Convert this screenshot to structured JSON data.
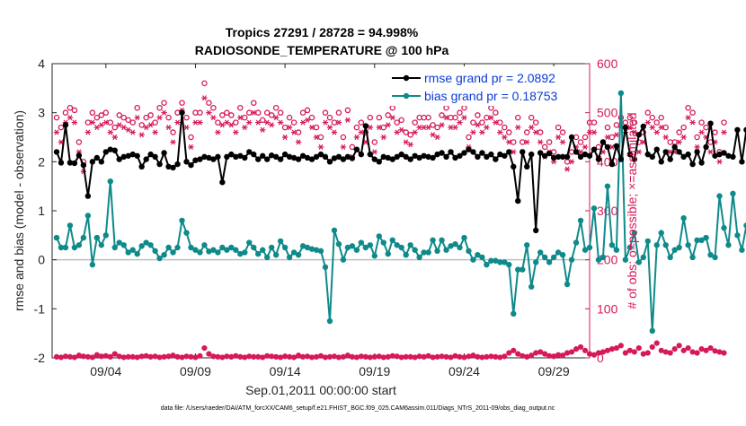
{
  "chart_data": {
    "type": "line",
    "title": "Tropics 27291 / 28728 = 94.998%",
    "subtitle": "RADIOSONDE_TEMPERATURE @ 100 hPa",
    "xlabel": "Sep.01,2011 00:00:00 start",
    "ylabel_left": "rmse and bias (model - observation)",
    "ylabel_right": "# of obs: o=possible; ×=assimilated",
    "footnote": "data file: /Users/raeder/DAI/ATM_forcXX/CAM6_setup/f.e21.FHIST_BGC.f09_025.CAM6assim.011/Diags_NTrS_2011-09/obs_diag_output.nc",
    "x_ticks": [
      3.5,
      8.5,
      13.5,
      18.5,
      23.5,
      28.5
    ],
    "x_tick_labels": [
      "09/04",
      "09/09",
      "09/14",
      "09/19",
      "09/24",
      "09/29"
    ],
    "xlim": [
      0.5,
      30.5
    ],
    "ylim_left": [
      -2,
      4
    ],
    "y_ticks_left": [
      -2,
      -1,
      0,
      1,
      2,
      3,
      4
    ],
    "y_tick_labels_left": [
      "-2",
      "-1",
      "0",
      "1",
      "2",
      "3",
      "4"
    ],
    "ylim_right": [
      0,
      600
    ],
    "y_ticks_right": [
      0,
      100,
      200,
      300,
      400,
      500,
      600
    ],
    "y_tick_labels_right": [
      "0",
      "100",
      "200",
      "300",
      "400",
      "500",
      "600"
    ],
    "legend": {
      "position": "top-right",
      "entries": [
        "rmse grand pr = 2.0892",
        "bias grand pr = 0.18753"
      ]
    },
    "colors": {
      "rmse": "#000000",
      "bias": "#0e8a8a",
      "possible": "#d6195a",
      "assimilated": "#d6195a",
      "zero_line": "#bfbfbf"
    },
    "time_step": 0.25,
    "series": [
      {
        "name": "rmse",
        "values": [
          2.2,
          1.98,
          2.75,
          1.98,
          1.97,
          2.13,
          1.93,
          1.3,
          2.0,
          2.08,
          2.0,
          2.2,
          2.25,
          2.23,
          2.05,
          2.1,
          2.12,
          2.15,
          2.12,
          1.9,
          2.05,
          2.15,
          2.1,
          1.95,
          2.18,
          1.9,
          1.88,
          1.95,
          3.0,
          2.0,
          1.93,
          2.03,
          2.05,
          2.1,
          2.08,
          2.05,
          2.1,
          1.58,
          2.1,
          2.15,
          2.1,
          2.12,
          2.08,
          2.2,
          2.15,
          2.05,
          2.12,
          2.05,
          2.13,
          2.1,
          2.05,
          2.15,
          2.1,
          2.08,
          2.05,
          2.12,
          2.08,
          2.05,
          2.1,
          2.15,
          2.1,
          2.0,
          2.07,
          2.1,
          2.05,
          2.1,
          2.07,
          2.25,
          2.15,
          2.73,
          2.15,
          2.05,
          2.0,
          2.1,
          2.08,
          2.05,
          2.1,
          2.15,
          2.1,
          2.05,
          2.12,
          2.08,
          2.12,
          2.1,
          2.08,
          2.15,
          2.18,
          2.1,
          2.2,
          2.08,
          2.12,
          2.18,
          2.25,
          2.2,
          2.1,
          2.18,
          2.1,
          2.15,
          2.05,
          2.15,
          2.12,
          2.2,
          1.9,
          1.2,
          2.2,
          1.9,
          2.15,
          0.6,
          2.18,
          2.12,
          2.17,
          2.08,
          2.1,
          2.1,
          2.1,
          2.5,
          2.2,
          2.1,
          2.15,
          2.12,
          2.25,
          2.05,
          2.4,
          2.3,
          1.95,
          2.32,
          2.05,
          2.7,
          2.15,
          2.05,
          2.55,
          2.72,
          2.15,
          2.1,
          2.25,
          2.0,
          2.2,
          2.05,
          2.3,
          2.2,
          2.1,
          2.15,
          1.95,
          2.2,
          1.98,
          2.3,
          2.78,
          2.12,
          2.15,
          2.18,
          2.12,
          2.1,
          2.65,
          2.0,
          2.65,
          2.65
        ]
      },
      {
        "name": "bias",
        "values": [
          0.45,
          0.25,
          0.25,
          0.7,
          0.25,
          0.3,
          0.45,
          0.9,
          -0.1,
          0.45,
          0.3,
          0.5,
          1.6,
          0.25,
          0.35,
          0.3,
          0.15,
          0.2,
          0.12,
          0.28,
          0.35,
          0.3,
          0.18,
          0.03,
          0.1,
          0.25,
          0.15,
          0.25,
          0.8,
          0.55,
          0.25,
          0.2,
          0.15,
          0.3,
          0.17,
          0.2,
          0.15,
          0.25,
          0.2,
          0.25,
          0.2,
          0.12,
          0.15,
          0.35,
          0.25,
          0.12,
          0.2,
          0.05,
          0.25,
          0.1,
          0.38,
          0.25,
          0.05,
          0.15,
          0.1,
          0.28,
          0.25,
          0.22,
          0.2,
          0.18,
          -0.15,
          -1.25,
          0.6,
          0.32,
          0.0,
          0.25,
          0.28,
          0.2,
          0.35,
          0.25,
          0.3,
          0.08,
          0.48,
          0.35,
          0.12,
          0.4,
          0.3,
          0.25,
          0.1,
          0.3,
          0.2,
          0.05,
          0.15,
          0.15,
          0.4,
          0.18,
          0.4,
          0.2,
          0.28,
          0.32,
          0.25,
          0.45,
          0.18,
          0.0,
          0.1,
          0.05,
          -0.1,
          -0.02,
          -0.02,
          -0.05,
          -0.05,
          -0.1,
          -1.1,
          -0.2,
          -0.2,
          0.3,
          -0.55,
          -0.05,
          0.15,
          0.05,
          -0.05,
          0.05,
          0.15,
          0.1,
          -0.5,
          0.0,
          0.35,
          0.8,
          0.2,
          0.25,
          1.05,
          0.0,
          0.05,
          1.5,
          0.3,
          0.2,
          3.4,
          0.0,
          0.25,
          0.55,
          -0.05,
          0.05,
          0.38,
          -1.45,
          0.3,
          0.55,
          0.3,
          0.05,
          0.2,
          0.25,
          0.85,
          0.3,
          0.05,
          0.4,
          0.4,
          0.45,
          0.1,
          0.05,
          1.3,
          0.65,
          0.3,
          1.35,
          0.5,
          0.2,
          0.7,
          0.55
        ]
      },
      {
        "name": "possible",
        "values": [
          490,
          470,
          500,
          510,
          505,
          440,
          400,
          480,
          500,
          490,
          495,
          500,
          480,
          470,
          495,
          490,
          485,
          480,
          510,
          475,
          490,
          495,
          480,
          510,
          520,
          490,
          460,
          500,
          520,
          490,
          450,
          500,
          500,
          560,
          520,
          510,
          480,
          495,
          500,
          495,
          480,
          510,
          490,
          500,
          520,
          500,
          485,
          500,
          495,
          510,
          500,
          470,
          490,
          480,
          460,
          500,
          505,
          490,
          470,
          450,
          500,
          490,
          480,
          500,
          450,
          505,
          430,
          470,
          480,
          460,
          490,
          440,
          490,
          470,
          495,
          510,
          480,
          485,
          460,
          455,
          480,
          490,
          490,
          490,
          475,
          470,
          495,
          510,
          490,
          490,
          500,
          510,
          450,
          480,
          495,
          480,
          490,
          510,
          500,
          480,
          470,
          460,
          440,
          490,
          440,
          460,
          490,
          480,
          460,
          430,
          440,
          420,
          470,
          460,
          400,
          420,
          450,
          440,
          450,
          480,
          480,
          430,
          440,
          470,
          450,
          475,
          490,
          480,
          490,
          480,
          440,
          460,
          500,
          490,
          480,
          490,
          470,
          440,
          440,
          460,
          470,
          510,
          500,
          450,
          480,
          470,
          440,
          460,
          420,
          480
        ]
      },
      {
        "name": "assimilated",
        "values": [
          460,
          440,
          480,
          490,
          480,
          420,
          380,
          460,
          480,
          470,
          475,
          480,
          460,
          450,
          475,
          470,
          465,
          460,
          490,
          455,
          470,
          475,
          460,
          490,
          500,
          470,
          440,
          480,
          505,
          470,
          430,
          480,
          480,
          530,
          500,
          490,
          460,
          475,
          480,
          475,
          460,
          490,
          470,
          480,
          500,
          480,
          465,
          480,
          475,
          490,
          480,
          450,
          470,
          460,
          440,
          480,
          485,
          470,
          450,
          430,
          480,
          470,
          460,
          480,
          430,
          485,
          410,
          450,
          460,
          440,
          470,
          420,
          470,
          450,
          475,
          490,
          460,
          465,
          440,
          435,
          460,
          470,
          470,
          470,
          455,
          450,
          475,
          490,
          470,
          470,
          480,
          490,
          430,
          460,
          475,
          460,
          470,
          490,
          480,
          460,
          450,
          440,
          420,
          470,
          420,
          440,
          470,
          460,
          440,
          410,
          420,
          400,
          450,
          440,
          385,
          400,
          430,
          420,
          430,
          460,
          460,
          410,
          420,
          450,
          430,
          455,
          470,
          460,
          470,
          460,
          420,
          440,
          480,
          470,
          460,
          470,
          450,
          420,
          420,
          440,
          450,
          490,
          480,
          430,
          460,
          450,
          420,
          440,
          400,
          460
        ]
      },
      {
        "name": "possible_low",
        "values": [
          2,
          1,
          3,
          2,
          1,
          5,
          3,
          2,
          1,
          6,
          3,
          4,
          2,
          8,
          3,
          1,
          2,
          2,
          1,
          3,
          4,
          2,
          3,
          1,
          2,
          3,
          5,
          2,
          1,
          3,
          2,
          1,
          4,
          20,
          8,
          3,
          2,
          1,
          3,
          2,
          4,
          2,
          1,
          3,
          2,
          2,
          1,
          4,
          3,
          2,
          1,
          3,
          2,
          1,
          5,
          2,
          3,
          1,
          2,
          4,
          1,
          2,
          3,
          1,
          2,
          5,
          2,
          1,
          3,
          2,
          1,
          2,
          3,
          1,
          2,
          4,
          3,
          1,
          2,
          2,
          1,
          3,
          2,
          4,
          1,
          2,
          3,
          2,
          1,
          4,
          2,
          1,
          3,
          5,
          2,
          1,
          2,
          3,
          2,
          1,
          3,
          10,
          15,
          8,
          4,
          2,
          5,
          10,
          12,
          8,
          4,
          3,
          6,
          5,
          10,
          12,
          18,
          22,
          15,
          8,
          6,
          10,
          12,
          15,
          18,
          20,
          25,
          10,
          15,
          12,
          20,
          8,
          10,
          22,
          30,
          15,
          12,
          10,
          18,
          25,
          15,
          20,
          12,
          10,
          18,
          15,
          20,
          14,
          12,
          10
        ]
      }
    ]
  }
}
